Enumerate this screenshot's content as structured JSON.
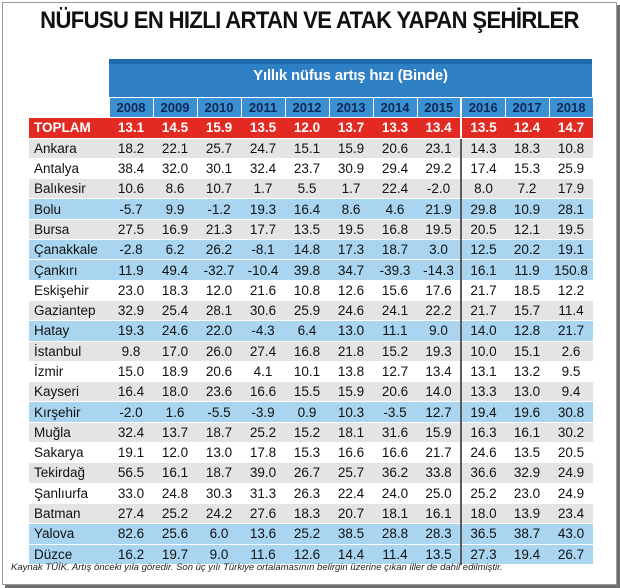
{
  "title": "NÜFUSU EN HIZLI ARTAN VE ATAK YAPAN ŞEHİRLER",
  "subtitle": "Yıllık nüfus artış hızı (Binde)",
  "years": [
    "2008",
    "2009",
    "2010",
    "2011",
    "2012",
    "2013",
    "2014",
    "2015",
    "2016",
    "2017",
    "2018"
  ],
  "total": {
    "label": "TOPLAM",
    "values": [
      "13.1",
      "14.5",
      "15.9",
      "13.5",
      "12.0",
      "13.7",
      "13.3",
      "13.4",
      "13.5",
      "12.4",
      "14.7"
    ]
  },
  "rows": [
    {
      "name": "Ankara",
      "values": [
        "18.2",
        "22.1",
        "25.7",
        "24.7",
        "15.1",
        "15.9",
        "20.6",
        "23.1",
        "14.3",
        "18.3",
        "10.8"
      ]
    },
    {
      "name": "Antalya",
      "values": [
        "38.4",
        "32.0",
        "30.1",
        "32.4",
        "23.7",
        "30.9",
        "29.4",
        "29.2",
        "17.4",
        "15.3",
        "25.9"
      ]
    },
    {
      "name": "Balıkesir",
      "values": [
        "10.6",
        "8.6",
        "10.7",
        "1.7",
        "5.5",
        "1.7",
        "22.4",
        "-2.0",
        "8.0",
        "7.2",
        "17.9"
      ]
    },
    {
      "name": "Bolu",
      "values": [
        "-5.7",
        "9.9",
        "-1.2",
        "19.3",
        "16.4",
        "8.6",
        "4.6",
        "21.9",
        "29.8",
        "10.9",
        "28.1"
      ]
    },
    {
      "name": "Bursa",
      "values": [
        "27.5",
        "16.9",
        "21.3",
        "17.7",
        "13.5",
        "19.5",
        "16.8",
        "19.5",
        "20.5",
        "12.1",
        "19.5"
      ]
    },
    {
      "name": "Çanakkale",
      "values": [
        "-2.8",
        "6.2",
        "26.2",
        "-8.1",
        "14.8",
        "17.3",
        "18.7",
        "3.0",
        "12.5",
        "20.2",
        "19.1"
      ]
    },
    {
      "name": "Çankırı",
      "values": [
        "11.9",
        "49.4",
        "-32.7",
        "-10.4",
        "39.8",
        "34.7",
        "-39.3",
        "-14.3",
        "16.1",
        "11.9",
        "150.8"
      ]
    },
    {
      "name": "Eskişehir",
      "values": [
        "23.0",
        "18.3",
        "12.0",
        "21.6",
        "10.8",
        "12.6",
        "15.6",
        "17.6",
        "21.7",
        "18.5",
        "12.2"
      ]
    },
    {
      "name": "Gaziantep",
      "values": [
        "32.9",
        "25.4",
        "28.1",
        "30.6",
        "25.9",
        "24.6",
        "24.1",
        "22.2",
        "21.7",
        "15.7",
        "11.4"
      ]
    },
    {
      "name": "Hatay",
      "values": [
        "19.3",
        "24.6",
        "22.0",
        "-4.3",
        "6.4",
        "13.0",
        "11.1",
        "9.0",
        "14.0",
        "12.8",
        "21.7"
      ]
    },
    {
      "name": "İstanbul",
      "values": [
        "9.8",
        "17.0",
        "26.0",
        "27.4",
        "16.8",
        "21.8",
        "15.2",
        "19.3",
        "10.0",
        "15.1",
        "2.6"
      ]
    },
    {
      "name": "İzmir",
      "values": [
        "15.0",
        "18.9",
        "20.6",
        "4.1",
        "10.1",
        "13.8",
        "12.7",
        "13.4",
        "13.1",
        "13.2",
        "9.5"
      ]
    },
    {
      "name": "Kayseri",
      "values": [
        "16.4",
        "18.0",
        "23.6",
        "16.6",
        "15.5",
        "15.9",
        "20.6",
        "14.0",
        "13.3",
        "13.0",
        "9.4"
      ]
    },
    {
      "name": "Kırşehir",
      "values": [
        "-2.0",
        "1.6",
        "-5.5",
        "-3.9",
        "0.9",
        "10.3",
        "-3.5",
        "12.7",
        "19.4",
        "19.6",
        "30.8"
      ]
    },
    {
      "name": "Muğla",
      "values": [
        "32.4",
        "13.7",
        "18.7",
        "25.2",
        "15.2",
        "18.1",
        "31.6",
        "15.9",
        "16.3",
        "16.1",
        "30.2"
      ]
    },
    {
      "name": "Sakarya",
      "values": [
        "19.1",
        "12.0",
        "13.0",
        "17.8",
        "15.3",
        "16.6",
        "16.6",
        "21.7",
        "24.6",
        "13.5",
        "20.5"
      ]
    },
    {
      "name": "Tekirdağ",
      "values": [
        "56.5",
        "16.1",
        "18.7",
        "39.0",
        "26.7",
        "25.7",
        "36.2",
        "33.8",
        "36.6",
        "32.9",
        "24.9"
      ]
    },
    {
      "name": "Şanlıurfa",
      "values": [
        "33.0",
        "24.8",
        "30.3",
        "31.3",
        "26.3",
        "22.4",
        "24.0",
        "25.0",
        "25.2",
        "23.0",
        "24.9"
      ]
    },
    {
      "name": "Batman",
      "values": [
        "27.4",
        "25.2",
        "24.2",
        "27.6",
        "18.3",
        "20.7",
        "18.1",
        "16.1",
        "18.0",
        "13.9",
        "23.4"
      ]
    },
    {
      "name": "Yalova",
      "values": [
        "82.6",
        "25.6",
        "6.0",
        "13.6",
        "25.2",
        "38.5",
        "28.8",
        "28.3",
        "36.5",
        "38.7",
        "43.0"
      ]
    },
    {
      "name": "Düzce",
      "values": [
        "16.2",
        "19.7",
        "9.0",
        "11.6",
        "12.6",
        "14.4",
        "11.4",
        "13.5",
        "27.3",
        "19.4",
        "26.7"
      ]
    }
  ],
  "highlighted_rows": [
    "Bolu",
    "Çanakkale",
    "Çankırı",
    "Hatay",
    "Kırşehir",
    "Yalova",
    "Düzce"
  ],
  "footnote": "Kaynak TÜİK. Artış önceki yıla göredir.  Son üç yılı Türkiye ortalamasının belirgin üzerine çıkan iller de dahil edilmiştir.",
  "colors": {
    "header_blue": "#2f7fc4",
    "total_red": "#e22a22",
    "highlight_blue": "#a9d5f0",
    "stripe_gray": "#e4e4e4"
  }
}
